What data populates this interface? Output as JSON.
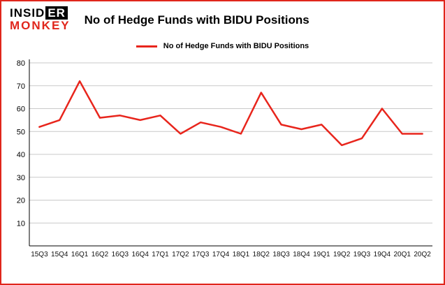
{
  "logo": {
    "top_black": "INSID",
    "top_boxed": "ER",
    "bottom": "MONKEY"
  },
  "header": {
    "title": "No of Hedge Funds with BIDU Positions"
  },
  "legend": {
    "label": "No of Hedge Funds with BIDU Positions"
  },
  "colors": {
    "accent_red": "#e0261c",
    "line_red": "#e8251c",
    "grid_gray": "#c9c9c9",
    "axis_black": "#000000"
  },
  "chart_data": {
    "type": "line",
    "title": "No of Hedge Funds with BIDU Positions",
    "categories": [
      "15Q3",
      "15Q4",
      "16Q1",
      "16Q2",
      "16Q3",
      "16Q4",
      "17Q1",
      "17Q2",
      "17Q3",
      "17Q4",
      "18Q1",
      "18Q2",
      "18Q3",
      "18Q4",
      "19Q1",
      "19Q2",
      "19Q3",
      "19Q4",
      "20Q1",
      "20Q2"
    ],
    "values": [
      52,
      55,
      72,
      56,
      57,
      55,
      57,
      49,
      54,
      52,
      49,
      67,
      53,
      51,
      53,
      44,
      47,
      60,
      49,
      49
    ],
    "xlabel": "",
    "ylabel": "",
    "ylim": [
      0,
      80
    ],
    "yticks": [
      10,
      20,
      30,
      40,
      50,
      60,
      70,
      80
    ],
    "grid": true,
    "legend_position": "top",
    "line_color": "#e8251c"
  }
}
